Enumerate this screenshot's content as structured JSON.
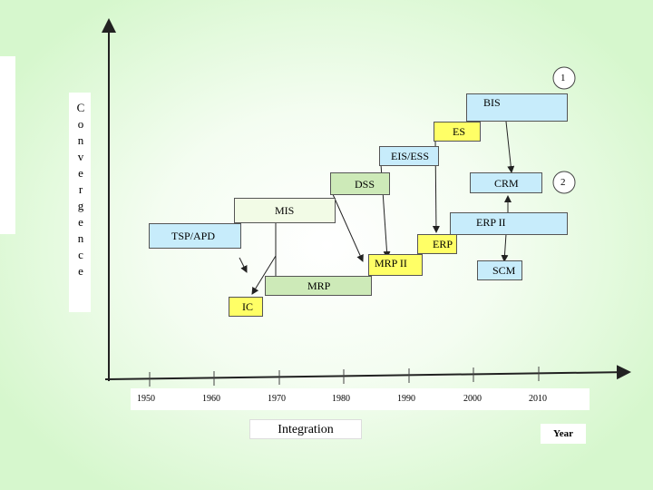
{
  "y_axis_label": [
    "C",
    "o",
    "n",
    "v",
    "e",
    "r",
    "g",
    "e",
    "n",
    "c",
    "e"
  ],
  "x_axis_label": "Integration",
  "year_label": "Year",
  "years": [
    "1950",
    "1960",
    "1970",
    "1980",
    "1990",
    "2000",
    "2010"
  ],
  "markers": {
    "one": "1",
    "two": "2"
  },
  "systems": {
    "bis": "BIS",
    "es": "ES",
    "eis_ess": "EIS/ESS",
    "dss": "DSS",
    "crm": "CRM",
    "mis": "MIS",
    "erp_ii": "ERP II",
    "tsp_apd": "TSP/APD",
    "erp": "ERP",
    "mrp_ii": "MRP II",
    "scm": "SCM",
    "mrp": "MRP",
    "ic": "IC"
  },
  "colors": {
    "blue": "#c7ecfb",
    "yellow": "#ffff66",
    "green": "#cdeab8",
    "pale_green": "#f2fbe6",
    "background": "#d7f8cf"
  }
}
